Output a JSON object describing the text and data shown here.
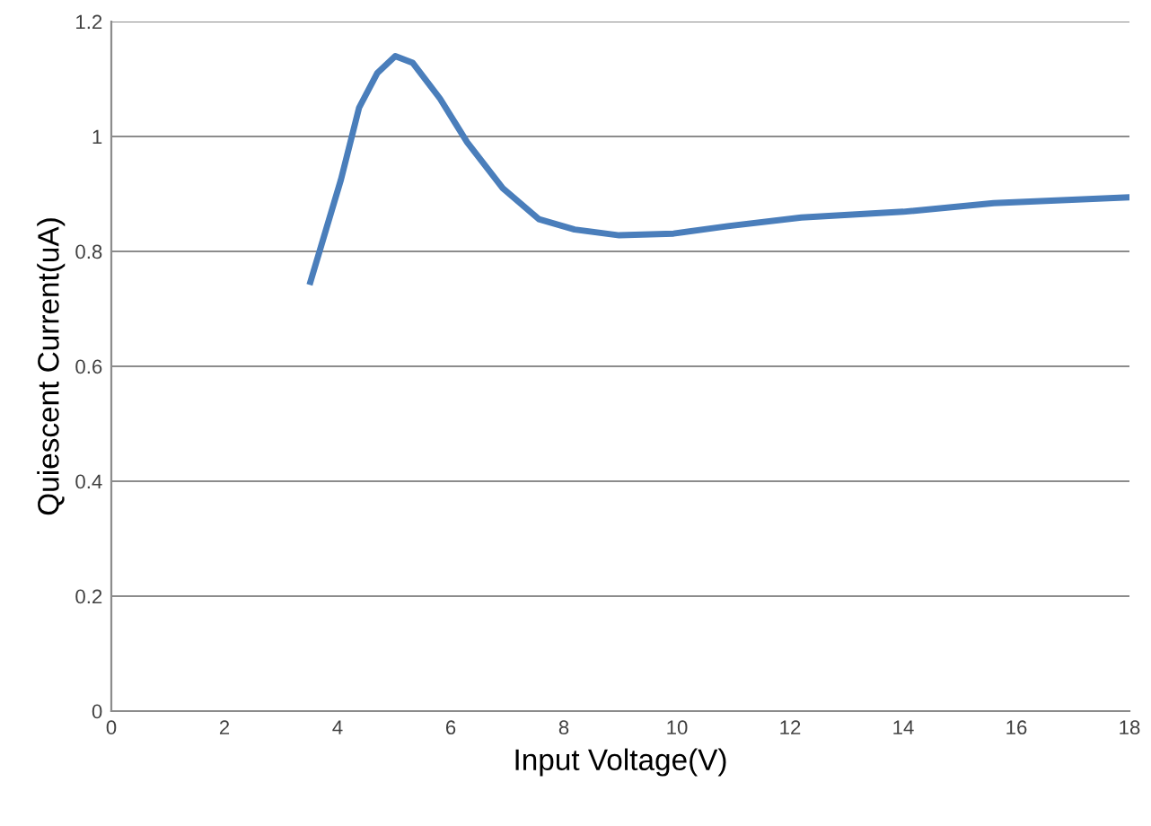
{
  "chart_data": {
    "type": "line",
    "xlabel": "Input Voltage(V)",
    "ylabel": "Quiescent Current(uA)",
    "series": [
      {
        "color": "#4a7ebb",
        "x": [
          3.52,
          4.06,
          4.38,
          4.7,
          5.02,
          5.33,
          5.81,
          6.29,
          6.92,
          7.56,
          8.19,
          8.98,
          9.94,
          10.9,
          12.2,
          14.0,
          15.6,
          18.0
        ],
        "values": [
          0.747,
          0.925,
          1.05,
          1.11,
          1.14,
          1.128,
          1.066,
          0.99,
          0.91,
          0.856,
          0.838,
          0.828,
          0.831,
          0.844,
          0.859,
          0.869,
          0.884,
          0.894
        ]
      }
    ],
    "xlim": [
      0,
      18
    ],
    "ylim": [
      0,
      1.2
    ],
    "xticks": [
      0,
      2,
      4,
      6,
      8,
      10,
      12,
      14,
      16,
      18
    ],
    "yticks": [
      0,
      0.2,
      0.4,
      0.6,
      0.8,
      {
        "value": 1,
        "label": "1"
      },
      1.2
    ],
    "grid": "y",
    "marker": "none",
    "line_style": "solid",
    "legend": false
  }
}
